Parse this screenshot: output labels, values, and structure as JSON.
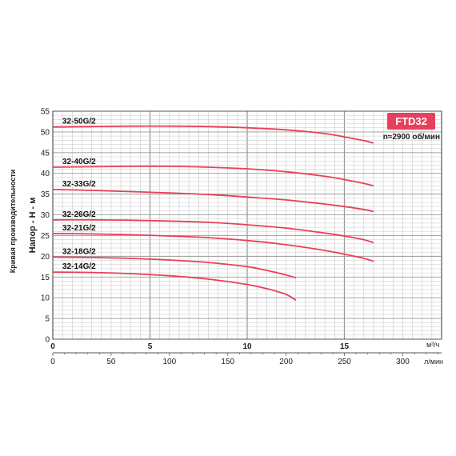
{
  "chart_data": {
    "type": "line",
    "title": "FTD32",
    "speed_note": "n≈2900 об/мин",
    "ylabel": "Напор - H - м",
    "side_label": "Кривая производительности",
    "x_m3h": {
      "unit": "м³/ч",
      "range": [
        0,
        20
      ],
      "ticks": [
        "0",
        "5",
        "10",
        "15"
      ],
      "tick_values": [
        0,
        5,
        10,
        15
      ]
    },
    "x_lmin": {
      "unit": "л/мин",
      "range": [
        0,
        333.3
      ],
      "ticks": [
        "0",
        "50",
        "100",
        "150",
        "200",
        "250",
        "300"
      ],
      "tick_values": [
        0,
        50,
        100,
        150,
        200,
        250,
        300
      ]
    },
    "y": {
      "range": [
        0,
        55
      ],
      "ticks": [
        "0",
        "5",
        "10",
        "15",
        "20",
        "25",
        "30",
        "35",
        "40",
        "45",
        "50",
        "55"
      ],
      "tick_values": [
        0,
        5,
        10,
        15,
        20,
        25,
        30,
        35,
        40,
        45,
        50,
        55
      ]
    },
    "grid": true,
    "colors": {
      "curve": "#e8405a",
      "badge": "#e8405a",
      "grid_minor": "#c8c8c8",
      "grid_major": "#9a9a9a"
    },
    "series": [
      {
        "name": "32-50G/2",
        "x": [
          0,
          2,
          4,
          6,
          8,
          10,
          12,
          14,
          15,
          16,
          16.5
        ],
        "y": [
          51.2,
          51.3,
          51.4,
          51.4,
          51.3,
          51.0,
          50.5,
          49.6,
          48.8,
          47.9,
          47.3
        ]
      },
      {
        "name": "32-40G/2",
        "x": [
          0,
          2,
          4,
          6,
          8,
          10,
          12,
          14,
          15,
          16,
          16.5
        ],
        "y": [
          41.5,
          41.6,
          41.7,
          41.7,
          41.5,
          41.1,
          40.4,
          39.3,
          38.5,
          37.6,
          37.0
        ]
      },
      {
        "name": "32-33G/2",
        "x": [
          0,
          2,
          4,
          6,
          8,
          10,
          12,
          14,
          15,
          16,
          16.5
        ],
        "y": [
          36.1,
          35.9,
          35.6,
          35.3,
          34.9,
          34.3,
          33.6,
          32.6,
          32.0,
          31.3,
          30.8
        ]
      },
      {
        "name": "32-26G/2",
        "x": [
          0,
          2,
          4,
          6,
          8,
          10,
          12,
          14,
          15,
          16,
          16.5
        ],
        "y": [
          28.8,
          28.8,
          28.7,
          28.5,
          28.2,
          27.6,
          26.8,
          25.6,
          24.9,
          24.0,
          23.3
        ]
      },
      {
        "name": "32-21G/2",
        "x": [
          0,
          2,
          4,
          6,
          8,
          10,
          12,
          14,
          15,
          16,
          16.5
        ],
        "y": [
          25.5,
          25.4,
          25.2,
          24.9,
          24.5,
          23.8,
          22.8,
          21.4,
          20.5,
          19.5,
          18.8
        ]
      },
      {
        "name": "32-18G/2",
        "x": [
          0,
          2,
          4,
          6,
          8,
          10,
          11,
          12,
          12.5
        ],
        "y": [
          19.8,
          19.7,
          19.5,
          19.1,
          18.5,
          17.5,
          16.6,
          15.5,
          14.8
        ]
      },
      {
        "name": "32-14G/2",
        "x": [
          0,
          2,
          4,
          6,
          8,
          10,
          11,
          12,
          12.5
        ],
        "y": [
          16.2,
          16.1,
          15.8,
          15.3,
          14.5,
          13.2,
          12.2,
          10.8,
          9.4
        ]
      }
    ]
  }
}
